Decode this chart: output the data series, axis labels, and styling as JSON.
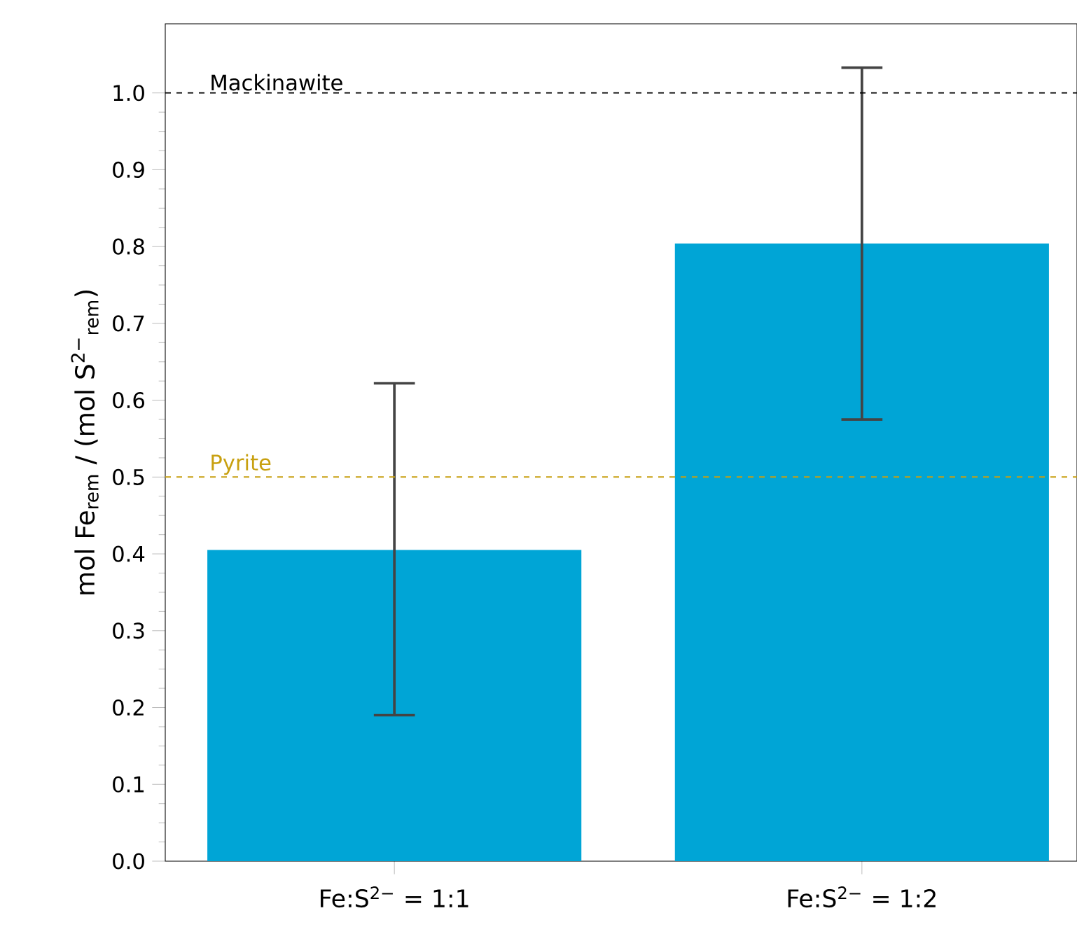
{
  "chart_data": {
    "type": "bar",
    "ylabel": "mol Fe$_{rem}$ / (mol S$^{2−}$$_{rem}$)",
    "categories": [
      "Fe:S$^{2−}$ = 1:1",
      "Fe:S$^{2−}$ = 1:2"
    ],
    "values": [
      0.405,
      0.804
    ],
    "color": "#00a5d6",
    "errors": [
      [
        0.19,
        0.622
      ],
      [
        0.575,
        1.033
      ]
    ],
    "ylim": [
      0,
      1.09
    ],
    "yticks": [
      {
        "value": 0,
        "label": "0.0"
      },
      0.1,
      0.2,
      0.3,
      0.4,
      0.5,
      0.6,
      0.7,
      0.8,
      0.9,
      {
        "value": 1,
        "label": "1.0"
      }
    ],
    "ref_lines": [
      {
        "axis": "y",
        "value": 1,
        "label": "Mackinawite",
        "color": "#000000",
        "line_style": "dashed"
      },
      {
        "axis": "y",
        "value": 0.5,
        "label": "Pyrite",
        "color": "#c8a010",
        "line_style": "dashed"
      }
    ],
    "grid": false
  }
}
